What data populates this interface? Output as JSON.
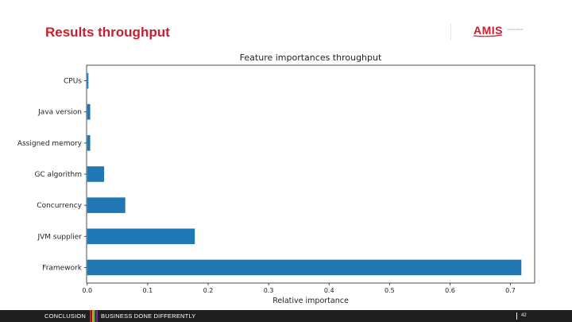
{
  "slide": {
    "title": "Results throughput",
    "title_color": "#c8202e"
  },
  "logo": {
    "text": "AMIS",
    "tagline": "CONCLUSION",
    "color": "#c8202e"
  },
  "chart_data": {
    "type": "bar",
    "orientation": "horizontal",
    "title": "Feature importances throughput",
    "xlabel": "Relative importance",
    "ylabel": "",
    "categories": [
      "CPUs",
      "Java version",
      "Assigned memory",
      "GC algorithm",
      "Concurrency",
      "JVM supplier",
      "Framework"
    ],
    "values": [
      0.002,
      0.005,
      0.005,
      0.028,
      0.063,
      0.178,
      0.718
    ],
    "xlim": [
      -0.001,
      0.74
    ],
    "xticks": [
      0.0,
      0.1,
      0.2,
      0.3,
      0.4,
      0.5,
      0.6,
      0.7
    ],
    "xtick_labels": [
      "0.0",
      "0.1",
      "0.2",
      "0.3",
      "0.4",
      "0.5",
      "0.6",
      "0.7"
    ],
    "bar_color": "#1f77b4",
    "grid": false,
    "legend": "none"
  },
  "footer": {
    "left": "CONCLUSION",
    "tagline": "BUSINESS DONE DIFFERENTLY",
    "page": "42",
    "stripe_colors": [
      "#c8202e",
      "#e6a11a",
      "#3a9b3a",
      "#7a2d8c"
    ]
  }
}
